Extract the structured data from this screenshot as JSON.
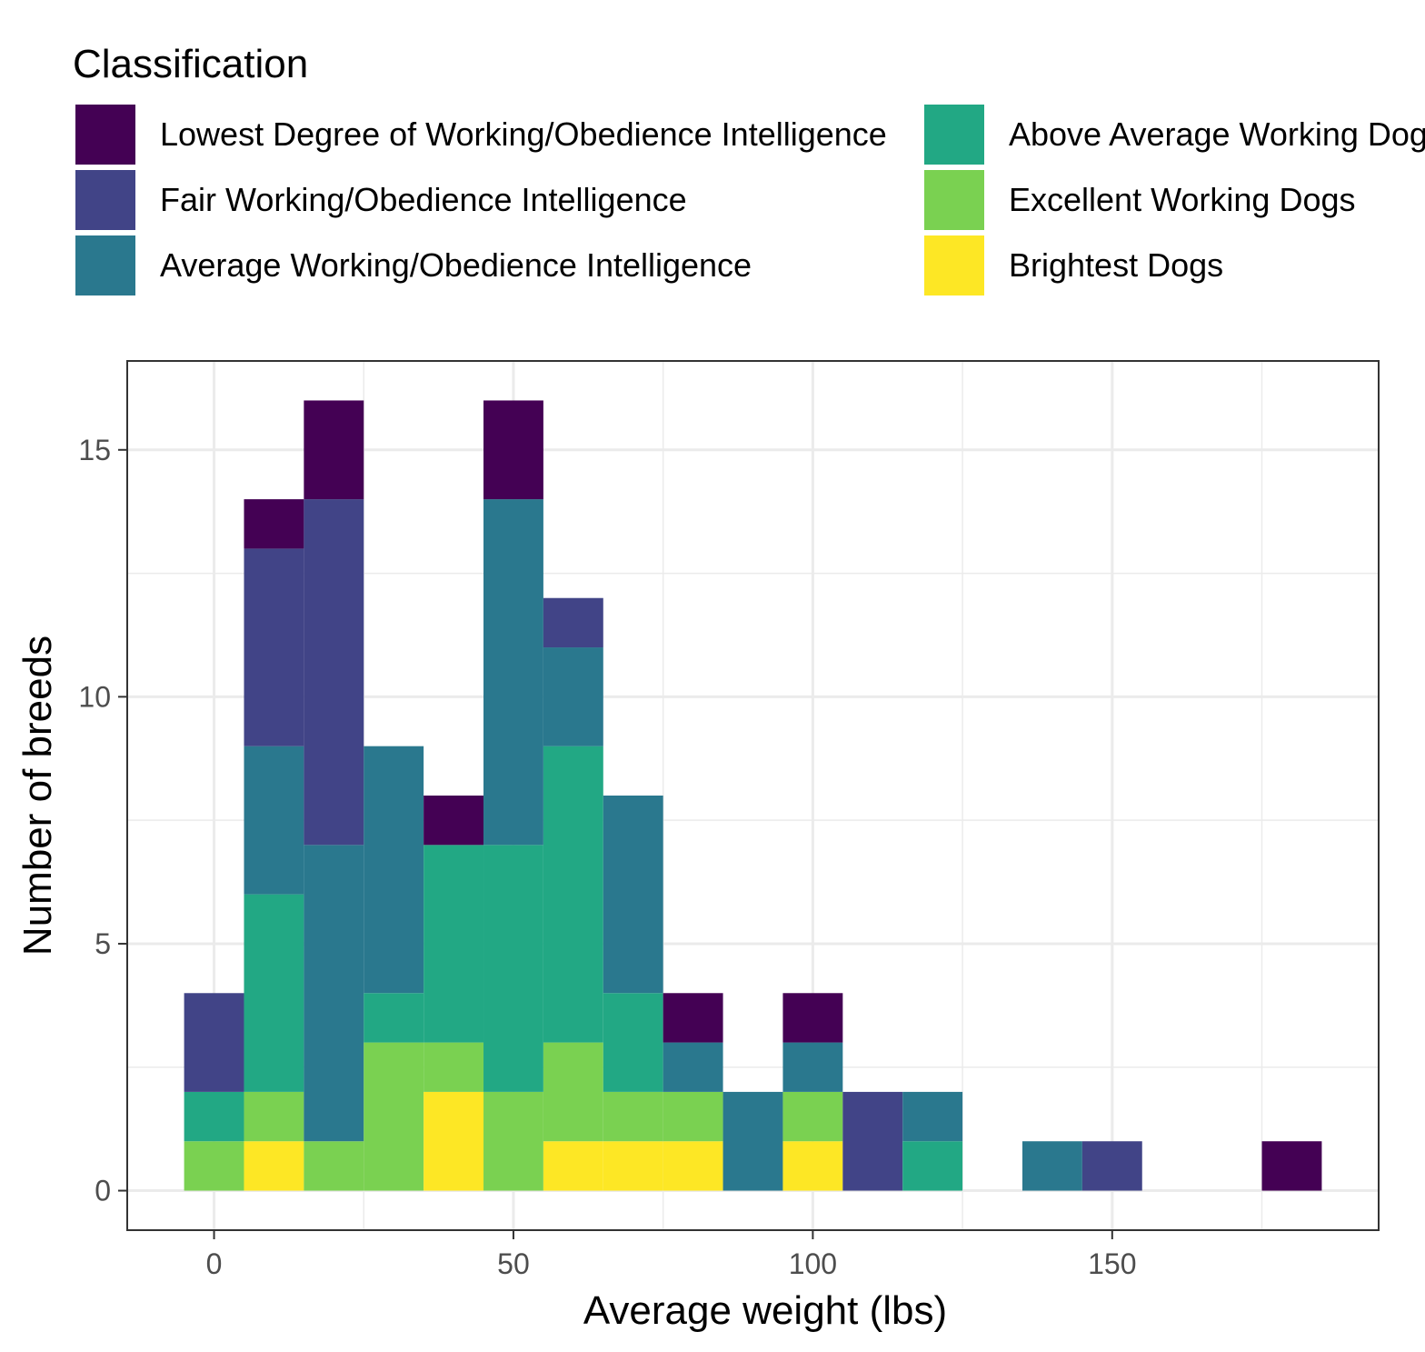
{
  "chart_data": {
    "type": "bar",
    "stacked": true,
    "bin_width": 10,
    "xlabel": "Average weight (lbs)",
    "ylabel": "Number of breeds",
    "xlim": [
      -14.5,
      194.5
    ],
    "ylim": [
      -0.8,
      16.8
    ],
    "x_ticks": [
      0,
      50,
      100,
      150
    ],
    "y_ticks": [
      0,
      5,
      10,
      15
    ],
    "grid": true,
    "legend": {
      "title": "Classification",
      "position": "top",
      "entries": [
        {
          "label": "Lowest Degree of Working/Obedience Intelligence",
          "color": "#440154"
        },
        {
          "label": "Fair Working/Obedience Intelligence",
          "color": "#414487"
        },
        {
          "label": "Average Working/Obedience Intelligence",
          "color": "#2A788E"
        },
        {
          "label": "Above Average Working Dogs",
          "color": "#22A884"
        },
        {
          "label": "Excellent Working Dogs",
          "color": "#7AD151"
        },
        {
          "label": "Brightest Dogs",
          "color": "#FDE725"
        }
      ]
    },
    "x": [
      0,
      10,
      20,
      30,
      40,
      50,
      60,
      70,
      80,
      90,
      100,
      110,
      120,
      130,
      140,
      150,
      160,
      170,
      180
    ],
    "series": [
      {
        "name": "Brightest Dogs",
        "values": [
          0,
          1,
          0,
          0,
          2,
          0,
          1,
          1,
          1,
          0,
          1,
          0,
          0,
          0,
          0,
          0,
          0,
          0,
          0
        ]
      },
      {
        "name": "Excellent Working Dogs",
        "values": [
          1,
          1,
          1,
          3,
          1,
          2,
          2,
          1,
          1,
          0,
          1,
          0,
          0,
          0,
          0,
          0,
          0,
          0,
          0
        ]
      },
      {
        "name": "Above Average Working Dogs",
        "values": [
          1,
          4,
          0,
          1,
          4,
          5,
          6,
          2,
          0,
          0,
          0,
          0,
          1,
          0,
          0,
          0,
          0,
          0,
          0
        ]
      },
      {
        "name": "Average Working/Obedience Intelligence",
        "values": [
          0,
          3,
          6,
          5,
          0,
          7,
          2,
          4,
          1,
          2,
          1,
          0,
          1,
          0,
          1,
          0,
          0,
          0,
          0
        ]
      },
      {
        "name": "Fair Working/Obedience Intelligence",
        "values": [
          2,
          4,
          7,
          0,
          0,
          0,
          1,
          0,
          0,
          0,
          0,
          2,
          0,
          0,
          0,
          1,
          0,
          0,
          0
        ]
      },
      {
        "name": "Lowest Degree of Working/Obedience Intelligence",
        "values": [
          0,
          1,
          2,
          0,
          1,
          2,
          0,
          0,
          1,
          0,
          1,
          0,
          0,
          0,
          0,
          0,
          0,
          0,
          1
        ]
      }
    ]
  }
}
